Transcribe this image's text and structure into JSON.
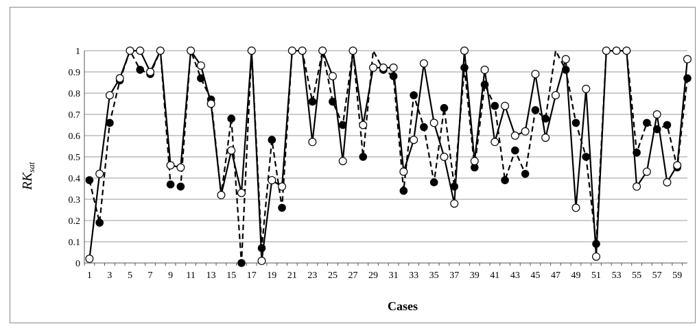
{
  "chart_data": {
    "type": "line",
    "xlabel": "Cases",
    "ylabel_main": "RK",
    "ylabel_sub": "sat",
    "ylim": [
      0,
      1
    ],
    "yticks": [
      "0",
      "0.1",
      "0.2",
      "0.3",
      "0.4",
      "0.5",
      "0.6",
      "0.7",
      "0.8",
      "0.9",
      "1"
    ],
    "xticks": [
      "1",
      "3",
      "5",
      "7",
      "9",
      "11",
      "13",
      "15",
      "17",
      "19",
      "21",
      "23",
      "25",
      "27",
      "29",
      "31",
      "33",
      "35",
      "37",
      "39",
      "41",
      "43",
      "45",
      "47",
      "49",
      "51",
      "53",
      "55",
      "57",
      "59"
    ],
    "grid": "horizontal",
    "x": [
      1,
      2,
      3,
      4,
      5,
      6,
      7,
      8,
      9,
      10,
      11,
      12,
      13,
      14,
      15,
      16,
      17,
      18,
      19,
      20,
      21,
      22,
      23,
      24,
      25,
      26,
      27,
      28,
      29,
      30,
      31,
      32,
      33,
      34,
      35,
      36,
      37,
      38,
      39,
      40,
      41,
      42,
      43,
      44,
      45,
      46,
      47,
      48,
      49,
      50,
      51,
      52,
      53,
      54,
      55,
      56,
      57,
      58,
      59,
      60
    ],
    "series": [
      {
        "line_style": "solid",
        "marker": "open-circle",
        "values": [
          0.02,
          0.42,
          0.79,
          0.87,
          1.0,
          1.0,
          0.9,
          1.0,
          0.46,
          0.45,
          1.0,
          0.93,
          0.75,
          0.32,
          0.53,
          0.33,
          1.0,
          0.01,
          0.39,
          0.36,
          1.0,
          1.0,
          0.57,
          1.0,
          0.88,
          0.48,
          1.0,
          0.65,
          0.92,
          0.92,
          0.92,
          0.43,
          0.58,
          0.94,
          0.66,
          0.5,
          0.28,
          1.0,
          0.48,
          0.91,
          0.57,
          0.74,
          0.6,
          0.62,
          0.89,
          0.59,
          0.79,
          0.96,
          0.26,
          0.82,
          0.03,
          1.0,
          1.0,
          1.0,
          0.36,
          0.43,
          0.7,
          0.38,
          0.46,
          0.96
        ]
      },
      {
        "line_style": "dashed",
        "marker": "filled-circle",
        "values": [
          0.39,
          0.19,
          0.66,
          0.86,
          1.0,
          0.91,
          0.89,
          1.0,
          0.37,
          0.36,
          1.0,
          0.87,
          0.77,
          0.32,
          0.68,
          0.0,
          1.0,
          0.07,
          0.58,
          0.26,
          1.0,
          1.0,
          0.76,
          1.0,
          0.76,
          0.65,
          1.0,
          0.5,
          1.0,
          0.91,
          0.88,
          0.34,
          0.79,
          0.64,
          0.38,
          0.73,
          0.36,
          0.92,
          0.45,
          0.84,
          0.74,
          0.39,
          0.53,
          0.42,
          0.72,
          0.68,
          1.0,
          0.91,
          0.66,
          0.5,
          0.09,
          1.0,
          1.0,
          1.0,
          0.52,
          0.66,
          0.63,
          0.65,
          0.45,
          0.87
        ]
      }
    ]
  }
}
